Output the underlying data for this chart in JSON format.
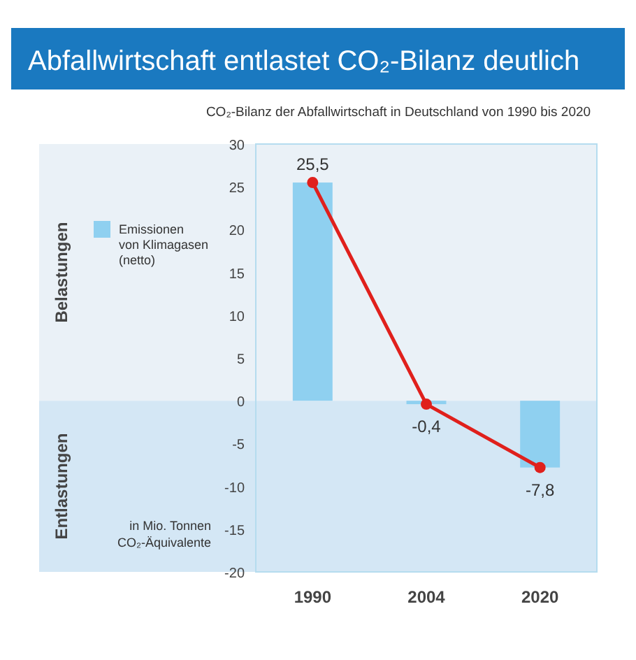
{
  "chart_data": {
    "type": "bar",
    "title": "Abfallwirtschaft entlastet CO₂-Bilanz deutlich",
    "subtitle": "CO₂-Bilanz der Abfallwirtschaft in Deutschland von 1990 bis 2020",
    "ylabel": "in Mio. Tonnen CO₂-Äquivalente",
    "categories": [
      "1990",
      "2004",
      "2020"
    ],
    "series": [
      {
        "name": "Emissionen von Klimagasen (netto)",
        "color": "#8fd0f0",
        "values": [
          25.5,
          -0.4,
          -7.8
        ]
      },
      {
        "type": "line",
        "color": "#e0201c",
        "values": [
          25.5,
          -0.4,
          -7.8
        ],
        "value_labels": [
          "25,5",
          "-0,4",
          "-7,8"
        ]
      }
    ],
    "marker": "circle",
    "line_style": "solid",
    "legend": "left",
    "grid": false,
    "ylim": [
      -20,
      30
    ],
    "yticks": [
      -20,
      -15,
      -10,
      -5,
      0,
      5,
      10,
      15,
      20,
      25,
      30
    ],
    "bands": [
      {
        "axis": "y",
        "from": 0,
        "to": 30,
        "label": "Belastungen",
        "color": "#eaf1f7"
      },
      {
        "axis": "y",
        "from": -20,
        "to": 0,
        "label": "Entlastungen",
        "color": "#d4e7f5"
      }
    ]
  }
}
